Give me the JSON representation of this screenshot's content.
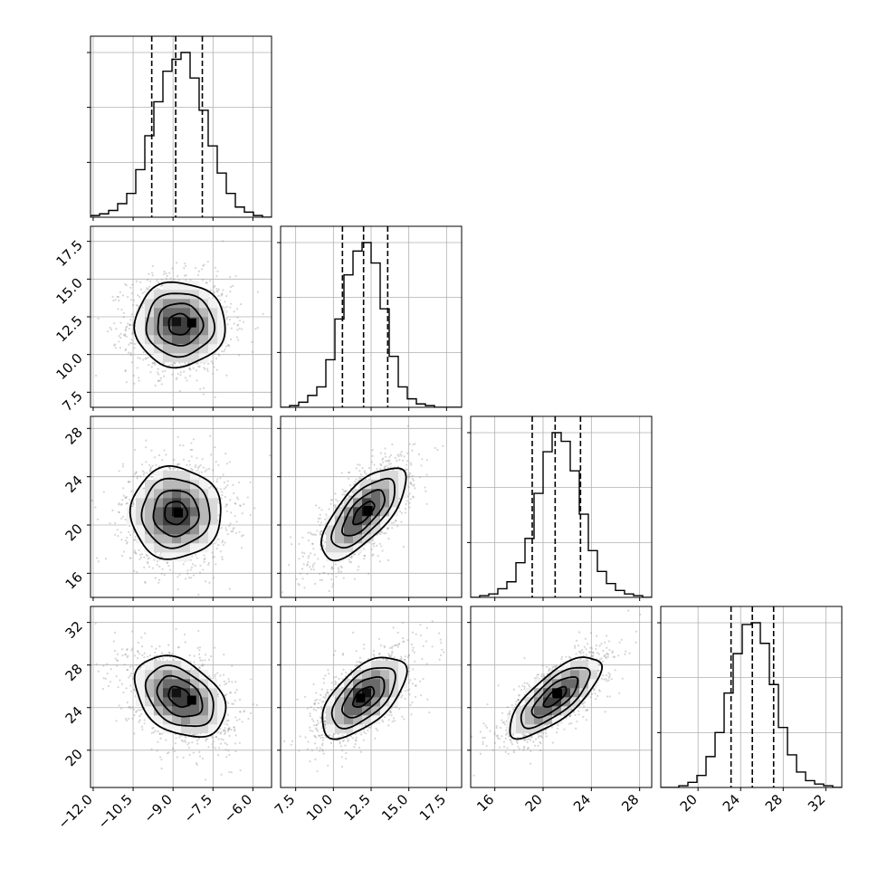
{
  "chart_data": {
    "type": "corner",
    "parameters": [
      {
        "index": 0,
        "ticks": [
          -12.0,
          -10.5,
          -9.0,
          -7.5,
          -6.0
        ],
        "tick_labels": [
          "−12.0",
          "−10.5",
          "−9.0",
          "−7.5",
          "−6.0"
        ],
        "range": [
          -12.1,
          -5.3
        ],
        "quantiles": [
          -9.8,
          -8.9,
          -7.9
        ],
        "hist": {
          "edges": [
            -12.1,
            -11.76,
            -11.42,
            -11.08,
            -10.74,
            -10.4,
            -10.06,
            -9.72,
            -9.38,
            -9.04,
            -8.7,
            -8.36,
            -8.02,
            -7.68,
            -7.34,
            -7.0,
            -6.66,
            -6.32,
            -5.98,
            -5.64,
            -5.3
          ],
          "counts": [
            1,
            2,
            4,
            8,
            14,
            28,
            48,
            68,
            86,
            93,
            97,
            82,
            63,
            42,
            26,
            14,
            6,
            3,
            1,
            0
          ]
        }
      },
      {
        "index": 1,
        "ticks": [
          7.5,
          10.0,
          12.5,
          15.0,
          17.5
        ],
        "tick_labels": [
          "7.5",
          "10.0",
          "12.5",
          "15.0",
          "17.5"
        ],
        "range": [
          6.5,
          18.5
        ],
        "quantiles": [
          10.6,
          12.0,
          13.6
        ],
        "hist": {
          "edges": [
            6.5,
            7.1,
            7.7,
            8.3,
            8.9,
            9.5,
            10.1,
            10.7,
            11.3,
            11.9,
            12.5,
            13.1,
            13.7,
            14.3,
            14.9,
            15.5,
            16.1,
            16.7,
            17.3,
            17.9,
            18.5
          ],
          "counts": [
            0,
            1,
            3,
            7,
            12,
            28,
            52,
            78,
            92,
            97,
            85,
            58,
            30,
            12,
            5,
            2,
            1,
            0,
            0,
            0
          ]
        }
      },
      {
        "index": 2,
        "ticks": [
          16,
          20,
          24,
          28
        ],
        "tick_labels": [
          "16",
          "20",
          "24",
          "28"
        ],
        "range": [
          14.0,
          29.0
        ],
        "quantiles": [
          19.1,
          21.0,
          23.1
        ],
        "hist": {
          "edges": [
            14.0,
            14.75,
            15.5,
            16.25,
            17.0,
            17.75,
            18.5,
            19.25,
            20.0,
            20.75,
            21.5,
            22.25,
            23.0,
            23.75,
            24.5,
            25.25,
            26.0,
            26.75,
            27.5,
            28.25,
            29.0
          ],
          "counts": [
            0,
            1,
            2,
            5,
            9,
            20,
            34,
            60,
            84,
            95,
            90,
            73,
            48,
            27,
            15,
            8,
            4,
            2,
            1,
            0
          ]
        }
      },
      {
        "index": 3,
        "ticks": [
          20,
          24,
          28,
          32
        ],
        "tick_labels": [
          "20",
          "24",
          "28",
          "32"
        ],
        "range": [
          16.5,
          33.5
        ],
        "quantiles": [
          23.1,
          25.1,
          27.1
        ],
        "hist": {
          "edges": [
            16.5,
            17.35,
            18.2,
            19.05,
            19.9,
            20.75,
            21.6,
            22.45,
            23.3,
            24.15,
            25.0,
            25.85,
            26.7,
            27.55,
            28.4,
            29.25,
            30.1,
            30.95,
            31.8,
            32.65,
            33.5
          ],
          "counts": [
            0,
            0,
            1,
            3,
            7,
            18,
            32,
            55,
            78,
            95,
            96,
            84,
            60,
            35,
            19,
            9,
            4,
            2,
            1,
            0
          ]
        }
      }
    ],
    "diag_yticks_fraction": [
      0.333,
      0.667,
      1.0
    ],
    "joint": [
      {
        "row": 1,
        "col": 0,
        "mean": [
          -8.75,
          12.0
        ],
        "sd": [
          0.85,
          1.4
        ],
        "corr": 0.0,
        "peak": [
          -8.3,
          12.1
        ]
      },
      {
        "row": 2,
        "col": 0,
        "mean": [
          -8.9,
          21.0
        ],
        "sd": [
          0.85,
          1.9
        ],
        "corr": 0.0,
        "peak": [
          -8.8,
          21.0
        ]
      },
      {
        "row": 2,
        "col": 1,
        "mean": [
          12.0,
          21.0
        ],
        "sd": [
          1.4,
          1.9
        ],
        "corr": 0.7,
        "peak": [
          12.3,
          21.2
        ]
      },
      {
        "row": 3,
        "col": 0,
        "mean": [
          -8.75,
          25.0
        ],
        "sd": [
          0.85,
          1.9
        ],
        "corr": -0.35,
        "peak": [
          -8.3,
          24.7
        ]
      },
      {
        "row": 3,
        "col": 1,
        "mean": [
          12.0,
          25.0
        ],
        "sd": [
          1.4,
          1.9
        ],
        "corr": 0.6,
        "peak": [
          11.8,
          24.9
        ]
      },
      {
        "row": 3,
        "col": 2,
        "mean": [
          21.0,
          25.0
        ],
        "sd": [
          1.9,
          1.9
        ],
        "corr": 0.75,
        "peak": [
          21.2,
          25.3
        ]
      }
    ],
    "contour_levels_sigma": [
      0.5,
      1.0,
      1.5,
      2.0
    ],
    "grid": true
  }
}
